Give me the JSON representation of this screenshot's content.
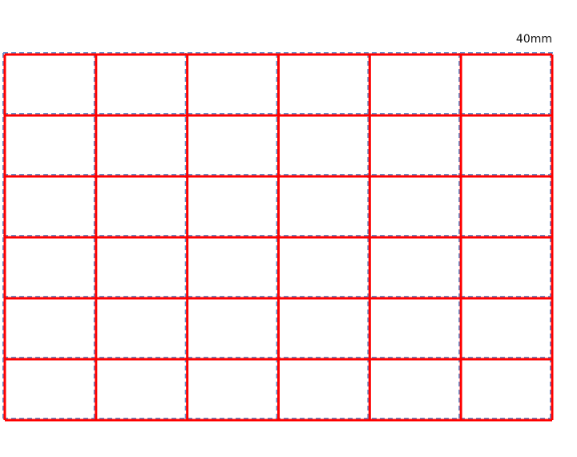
{
  "dimension_label": "40mm",
  "grid": {
    "rows": 6,
    "columns": 6,
    "line_color": "#ff0000",
    "guide_color": "#6a8fc8",
    "guide_style": "dashed"
  }
}
